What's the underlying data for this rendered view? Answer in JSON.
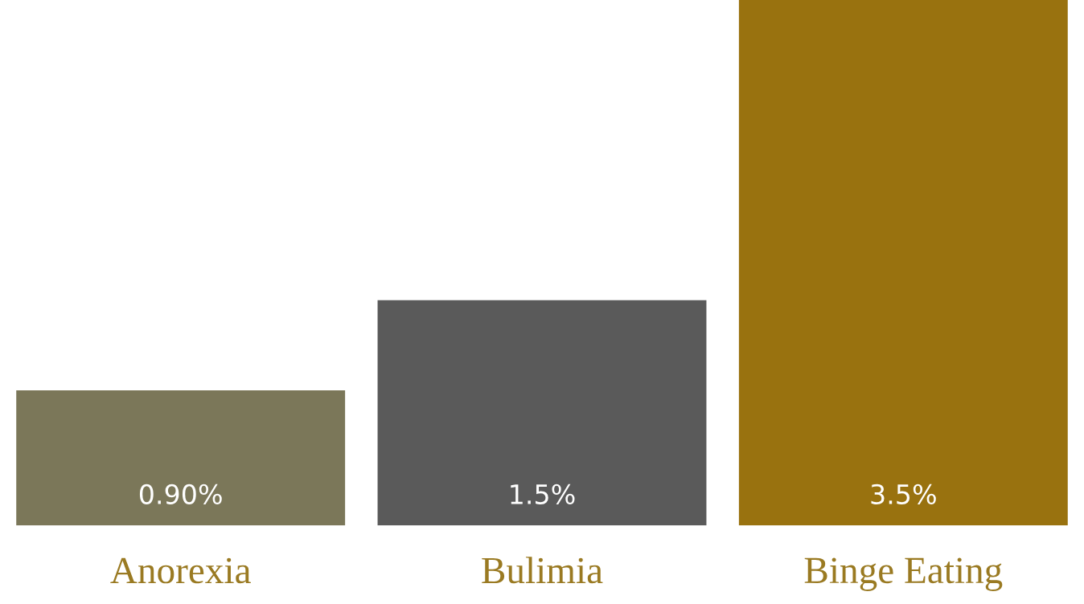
{
  "chart_data": {
    "type": "bar",
    "categories": [
      "Anorexia",
      "Bulimia",
      "Binge Eating"
    ],
    "values": [
      0.9,
      1.5,
      3.5
    ],
    "value_labels": [
      "0.90%",
      "1.5%",
      "3.5%"
    ],
    "colors": [
      "#7b7759",
      "#5a5a5a",
      "#99720f"
    ],
    "grid": false,
    "legend": false
  }
}
